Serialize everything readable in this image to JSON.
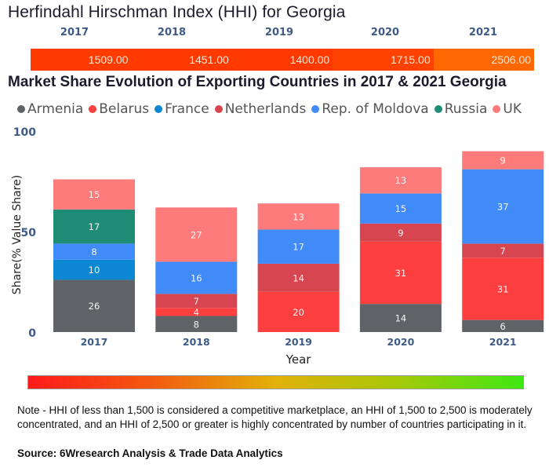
{
  "hhi": {
    "title": "Herfindahl Hirschman Index (HHI) for Georgia",
    "years": [
      "2017",
      "2018",
      "2019",
      "2020",
      "2021"
    ],
    "values": [
      "1509.00",
      "1451.00",
      "1400.00",
      "1715.00",
      "2506.00"
    ],
    "colors": [
      "#ff3b00",
      "#ff3a00",
      "#ff3900",
      "#ff4200",
      "#ff6700"
    ]
  },
  "chart_data": {
    "type": "bar",
    "stacked": true,
    "title": "Market Share Evolution of Exporting Countries in 2017 & 2021 Georgia",
    "xlabel": "Year",
    "ylabel": "Share(% Value Share)",
    "ylim": [
      0,
      100
    ],
    "yticks": [
      "0",
      "50",
      "100"
    ],
    "grid": false,
    "legend_position": "top",
    "categories": [
      "2017",
      "2018",
      "2019",
      "2020",
      "2021"
    ],
    "series": [
      {
        "name": "Armenia",
        "color": "#5f6368",
        "values": [
          26,
          8,
          null,
          14,
          6
        ]
      },
      {
        "name": "Belarus",
        "color": "#fd3f3f",
        "values": [
          null,
          4,
          20,
          31,
          31
        ]
      },
      {
        "name": "France",
        "color": "#0b88d1",
        "values": [
          10,
          null,
          null,
          null,
          null
        ]
      },
      {
        "name": "Netherlands",
        "color": "#d64550",
        "values": [
          null,
          7,
          14,
          9,
          7
        ]
      },
      {
        "name": "Rep. of Moldova",
        "color": "#418bf8",
        "values": [
          8,
          16,
          17,
          15,
          37
        ]
      },
      {
        "name": "Russia",
        "color": "#1e8c77",
        "values": [
          17,
          null,
          null,
          null,
          null
        ]
      },
      {
        "name": "UK",
        "color": "#fd7b7b",
        "values": [
          15,
          27,
          13,
          13,
          9
        ]
      }
    ]
  },
  "gradient": {
    "colors": [
      "#ff1a1a",
      "#f25a0f",
      "#e2b10a",
      "#a5c90a",
      "#3ee813"
    ]
  },
  "footer": {
    "note": "Note - HHI of less than 1,500 is considered a competitive marketplace, an HHI of 1,500 to 2,500 is moderately concentrated, and an HHI of 2,500 or greater is highly concentrated by number of countries participating in it.",
    "source": "Source: 6Wresearch Analysis & Trade Data Analytics"
  }
}
